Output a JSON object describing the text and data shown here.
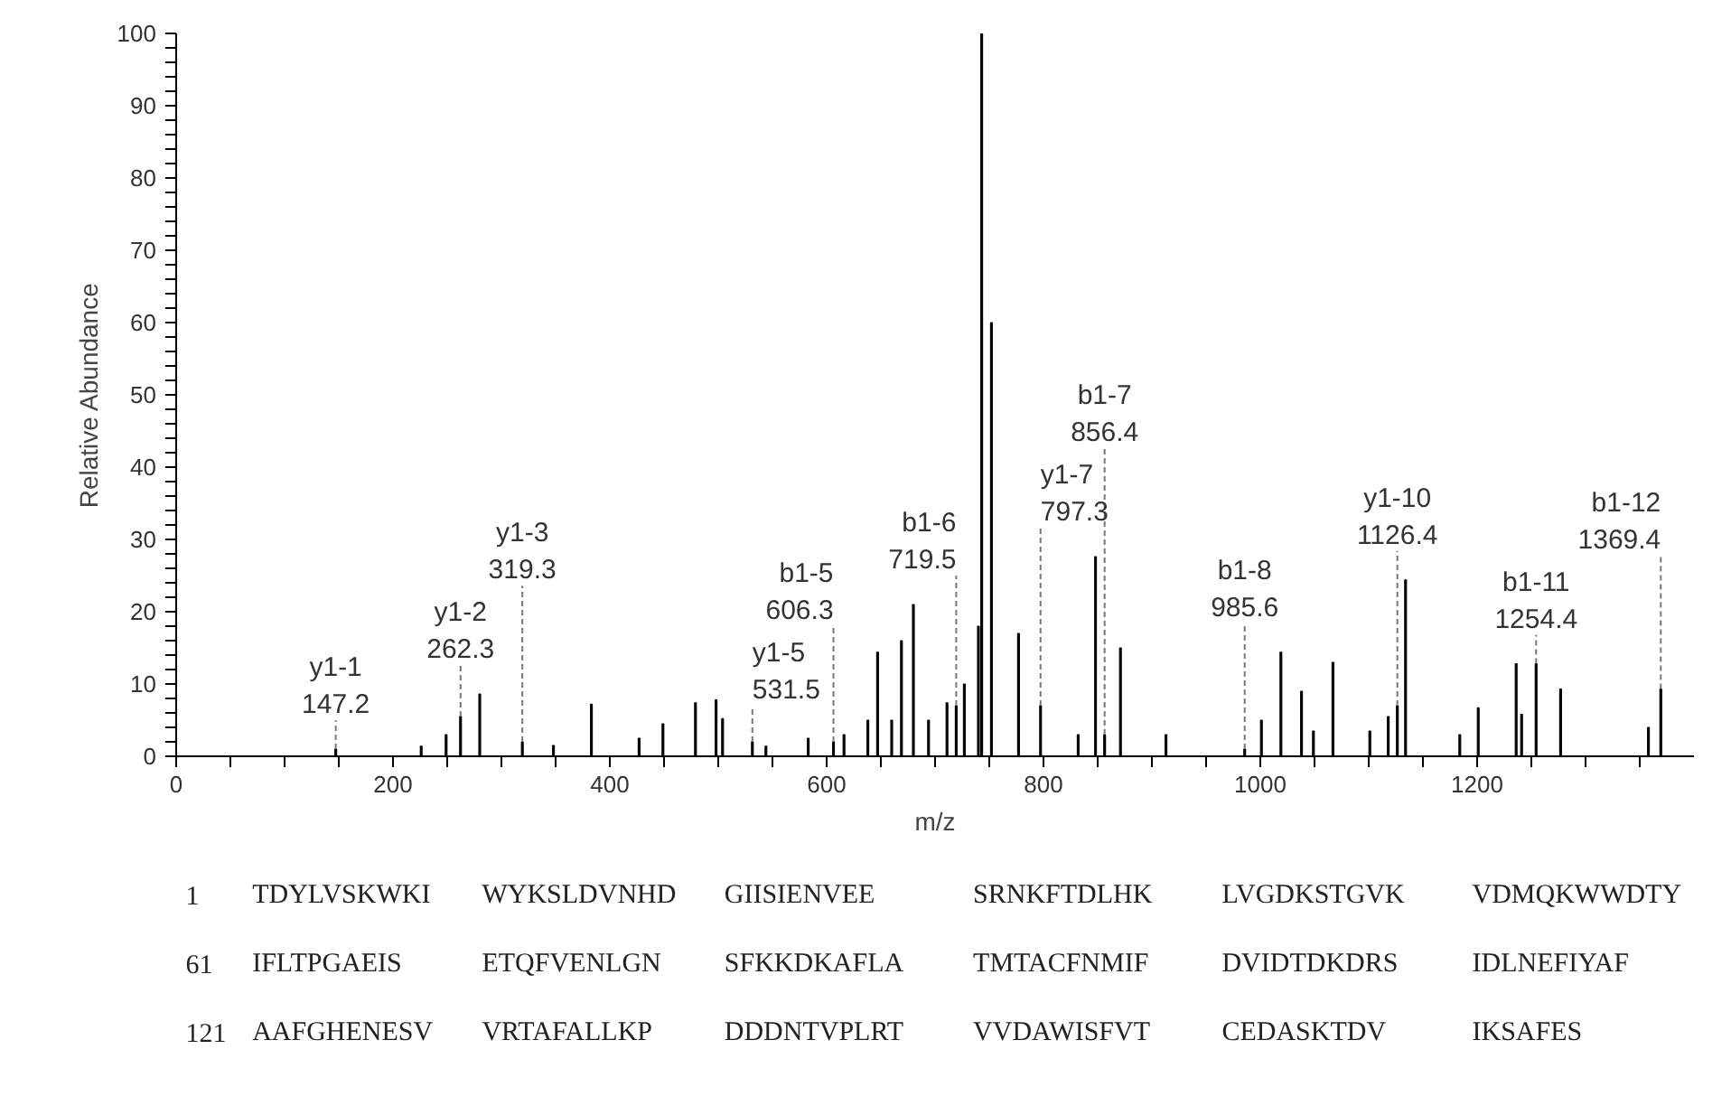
{
  "chart_data": {
    "type": "bar",
    "xlabel": "m/z",
    "ylabel": "Relative Abundance",
    "x": [
      147.2,
      226,
      249,
      262.3,
      280,
      319.3,
      348,
      383,
      427,
      449,
      479,
      498,
      504,
      531.5,
      544,
      583,
      606.3,
      616,
      638,
      647,
      660,
      669,
      680,
      694,
      711,
      719.5,
      727,
      740,
      743,
      752,
      777,
      797.3,
      832,
      848,
      856.4,
      871,
      913,
      985.6,
      1001,
      1019,
      1038,
      1049,
      1067,
      1101,
      1118,
      1126.4,
      1134,
      1184,
      1201,
      1236,
      1241,
      1254.4,
      1277,
      1358,
      1369.4
    ],
    "values": [
      1,
      1.4,
      3,
      5.5,
      8.6,
      2,
      1.5,
      7.2,
      2.5,
      4.5,
      7.4,
      7.8,
      5.2,
      2,
      1.4,
      2.5,
      2,
      3,
      5,
      14.4,
      5,
      16,
      21,
      5,
      7.4,
      7,
      10,
      18,
      100,
      60,
      17,
      7,
      3,
      27.6,
      3,
      15,
      3,
      1,
      5,
      14.4,
      9,
      3.5,
      13,
      3.5,
      5.5,
      7,
      24.4,
      3,
      6.7,
      12.8,
      5.8,
      12.8,
      9.3,
      4,
      9.3
    ],
    "color": "#000000",
    "xlim": [
      0,
      1400
    ],
    "xticks": [
      0,
      {
        "value": 50,
        "label": null
      },
      {
        "value": 100,
        "label": null
      },
      {
        "value": 150,
        "label": null
      },
      200,
      {
        "value": 250,
        "label": null
      },
      {
        "value": 300,
        "label": null
      },
      {
        "value": 350,
        "label": null
      },
      400,
      {
        "value": 450,
        "label": null
      },
      {
        "value": 500,
        "label": null
      },
      {
        "value": 550,
        "label": null
      },
      600,
      {
        "value": 650,
        "label": null
      },
      {
        "value": 700,
        "label": null
      },
      {
        "value": 750,
        "label": null
      },
      800,
      {
        "value": 850,
        "label": null
      },
      {
        "value": 900,
        "label": null
      },
      {
        "value": 950,
        "label": null
      },
      1000,
      {
        "value": 1050,
        "label": null
      },
      {
        "value": 1100,
        "label": null
      },
      {
        "value": 1150,
        "label": null
      },
      1200,
      {
        "value": 1250,
        "label": null
      },
      {
        "value": 1300,
        "label": null
      },
      {
        "value": 1350,
        "label": null
      }
    ],
    "ylim": [
      0,
      100
    ],
    "yticks": [
      0,
      {
        "value": 2,
        "label": null
      },
      {
        "value": 4,
        "label": null
      },
      {
        "value": 6,
        "label": null
      },
      {
        "value": 8,
        "label": null
      },
      10,
      {
        "value": 12,
        "label": null
      },
      {
        "value": 14,
        "label": null
      },
      {
        "value": 16,
        "label": null
      },
      {
        "value": 18,
        "label": null
      },
      20,
      {
        "value": 22,
        "label": null
      },
      {
        "value": 24,
        "label": null
      },
      {
        "value": 26,
        "label": null
      },
      {
        "value": 28,
        "label": null
      },
      30,
      {
        "value": 32,
        "label": null
      },
      {
        "value": 34,
        "label": null
      },
      {
        "value": 36,
        "label": null
      },
      {
        "value": 38,
        "label": null
      },
      40,
      {
        "value": 42,
        "label": null
      },
      {
        "value": 44,
        "label": null
      },
      {
        "value": 46,
        "label": null
      },
      {
        "value": 48,
        "label": null
      },
      50,
      {
        "value": 52,
        "label": null
      },
      {
        "value": 54,
        "label": null
      },
      {
        "value": 56,
        "label": null
      },
      {
        "value": 58,
        "label": null
      },
      60,
      {
        "value": 62,
        "label": null
      },
      {
        "value": 64,
        "label": null
      },
      {
        "value": 66,
        "label": null
      },
      {
        "value": 68,
        "label": null
      },
      70,
      {
        "value": 72,
        "label": null
      },
      {
        "value": 74,
        "label": null
      },
      {
        "value": 76,
        "label": null
      },
      {
        "value": 78,
        "label": null
      },
      80,
      {
        "value": 82,
        "label": null
      },
      {
        "value": 84,
        "label": null
      },
      {
        "value": 86,
        "label": null
      },
      {
        "value": 88,
        "label": null
      },
      90,
      {
        "value": 92,
        "label": null
      },
      {
        "value": 94,
        "label": null
      },
      {
        "value": 96,
        "label": null
      },
      {
        "value": 98,
        "label": null
      },
      100
    ],
    "grid": false,
    "annotations": [
      {
        "text": "y1-1\n147.2",
        "x": 147.2,
        "y": 1
      },
      {
        "text": "y1-2\n262.3",
        "x": 262.3,
        "y": 5.5
      },
      {
        "text": "y1-3\n319.3",
        "x": 319.3,
        "y": 2
      },
      {
        "text": "y1-5\n531.5",
        "x": 531.5,
        "y": 2
      },
      {
        "text": "b1-5\n606.3",
        "x": 606.3,
        "y": 2
      },
      {
        "text": "b1-6\n719.5",
        "x": 719.5,
        "y": 7
      },
      {
        "text": "y1-7\n797.3",
        "x": 797.3,
        "y": 7
      },
      {
        "text": "b1-7\n856.4",
        "x": 856.4,
        "y": 3
      },
      {
        "text": "b1-8\n985.6",
        "x": 985.6,
        "y": 1
      },
      {
        "text": "y1-10\n1126.4",
        "x": 1126.4,
        "y": 7
      },
      {
        "text": "b1-11\n1254.4",
        "x": 1254.4,
        "y": 12.8
      },
      {
        "text": "b1-12\n1369.4",
        "x": 1369.4,
        "y": 9.3
      },
      "1 TDYLVSKWKI WYKSLDVNHD GIISIENVEE SRNKFTDLHK LVGDKSTGVK VDMQKWWDTY",
      "61 IFLTPGAEIS ETQFVENLGN SFKKDKAFLA TMTACFNMIF DVIDTDKDRS IDLNEFIYAF",
      "121 AAFGHENESV VRTAFALLKP DDDNTVPLRT VVDAWISFVT CEDASKTDV IKSAFES"
    ]
  }
}
